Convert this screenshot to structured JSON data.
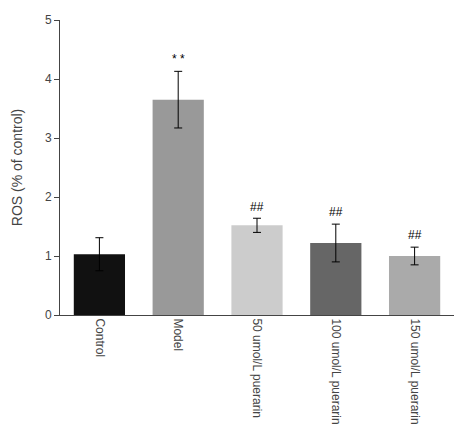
{
  "chart_data": {
    "type": "bar",
    "categories": [
      "Control",
      "Model",
      "50 umol/L puerarin",
      "100 umol/L puerarin",
      "150 umol/L puerarin"
    ],
    "values": [
      1.03,
      3.65,
      1.52,
      1.22,
      1.0
    ],
    "errors": [
      0.28,
      0.48,
      0.12,
      0.32,
      0.15
    ],
    "colors": [
      "#111111",
      "#999999",
      "#cccccc",
      "#666666",
      "#aaaaaa"
    ],
    "ylabel": "ROS (% of control)",
    "ylim": [
      0,
      5
    ],
    "yticks": [
      0,
      1,
      2,
      3,
      4,
      5
    ],
    "grid": false,
    "annotations": [
      {
        "text": "* *",
        "x": "Model",
        "y": 4.18
      },
      {
        "text": "##",
        "x": "50 umol/L puerarin",
        "y": 1.68
      },
      {
        "text": "##",
        "x": "100 umol/L puerarin",
        "y": 1.6
      },
      {
        "text": "##",
        "x": "150 umol/L puerarin",
        "y": 1.2
      }
    ]
  }
}
